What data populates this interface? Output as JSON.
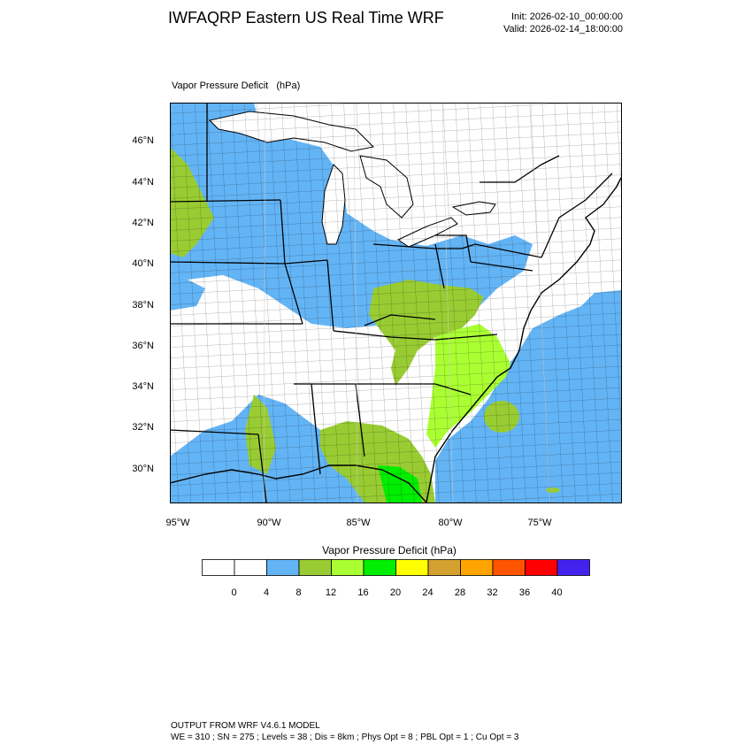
{
  "header": {
    "title": "IWFAQRP Eastern US Real Time WRF",
    "init": "Init: 2026-02-10_00:00:00",
    "valid": "Valid: 2026-02-14_18:00:00"
  },
  "field_title": "Vapor Pressure Deficit   (hPa)",
  "map": {
    "lat_labels": [
      "46°N",
      "44°N",
      "42°N",
      "40°N",
      "38°N",
      "36°N",
      "34°N",
      "32°N",
      "30°N"
    ],
    "lon_labels": [
      "95°W",
      "90°W",
      "85°W",
      "80°W",
      "75°W"
    ]
  },
  "colorbar": {
    "title": "Vapor Pressure Deficit  (hPa)",
    "labels": [
      "0",
      "4",
      "8",
      "12",
      "16",
      "20",
      "24",
      "28",
      "32",
      "36",
      "40"
    ],
    "colors": [
      "#ffffff",
      "#ffffff",
      "#63b4f5",
      "#99cc33",
      "#aaff33",
      "#00ee00",
      "#ffff00",
      "#d4a030",
      "#ffa500",
      "#ff5500",
      "#ff0000",
      "#4422ee"
    ]
  },
  "footer": {
    "line1": "OUTPUT FROM WRF V4.6.1 MODEL",
    "line2": "WE = 310 ; SN = 275 ; Levels = 38 ; Dis = 8km ; Phys Opt = 8 ; PBL Opt = 1 ; Cu Opt = 3"
  }
}
